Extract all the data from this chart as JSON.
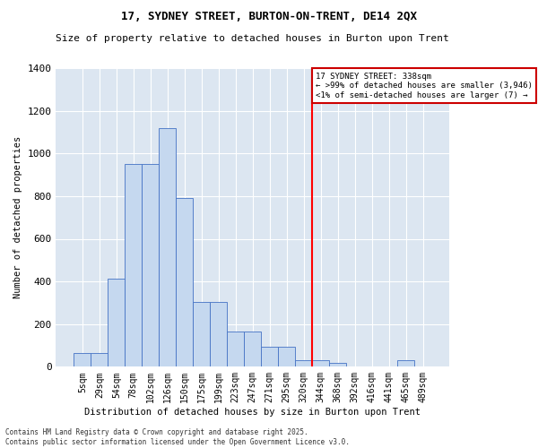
{
  "title1": "17, SYDNEY STREET, BURTON-ON-TRENT, DE14 2QX",
  "title2": "Size of property relative to detached houses in Burton upon Trent",
  "xlabel": "Distribution of detached houses by size in Burton upon Trent",
  "ylabel": "Number of detached properties",
  "categories": [
    "5sqm",
    "29sqm",
    "54sqm",
    "78sqm",
    "102sqm",
    "126sqm",
    "150sqm",
    "175sqm",
    "199sqm",
    "223sqm",
    "247sqm",
    "271sqm",
    "295sqm",
    "320sqm",
    "344sqm",
    "368sqm",
    "392sqm",
    "416sqm",
    "441sqm",
    "465sqm",
    "489sqm"
  ],
  "bar_heights": [
    65,
    65,
    415,
    950,
    950,
    1120,
    790,
    305,
    305,
    165,
    165,
    95,
    95,
    30,
    30,
    18,
    0,
    0,
    0,
    30,
    0
  ],
  "bar_color": "#c5d8ef",
  "bar_edge_color": "#4472c4",
  "bg_color": "#dce6f1",
  "grid_color": "#ffffff",
  "red_line_index": 14,
  "annotation_text": "17 SYDNEY STREET: 338sqm\n← >99% of detached houses are smaller (3,946)\n<1% of semi-detached houses are larger (7) →",
  "annotation_box_color": "#ffffff",
  "annotation_box_edge": "#cc0000",
  "footnote": "Contains HM Land Registry data © Crown copyright and database right 2025.\nContains public sector information licensed under the Open Government Licence v3.0.",
  "ylim": [
    0,
    1400
  ],
  "yticks": [
    0,
    200,
    400,
    600,
    800,
    1000,
    1200,
    1400
  ],
  "figsize": [
    6.0,
    5.0
  ],
  "dpi": 100
}
